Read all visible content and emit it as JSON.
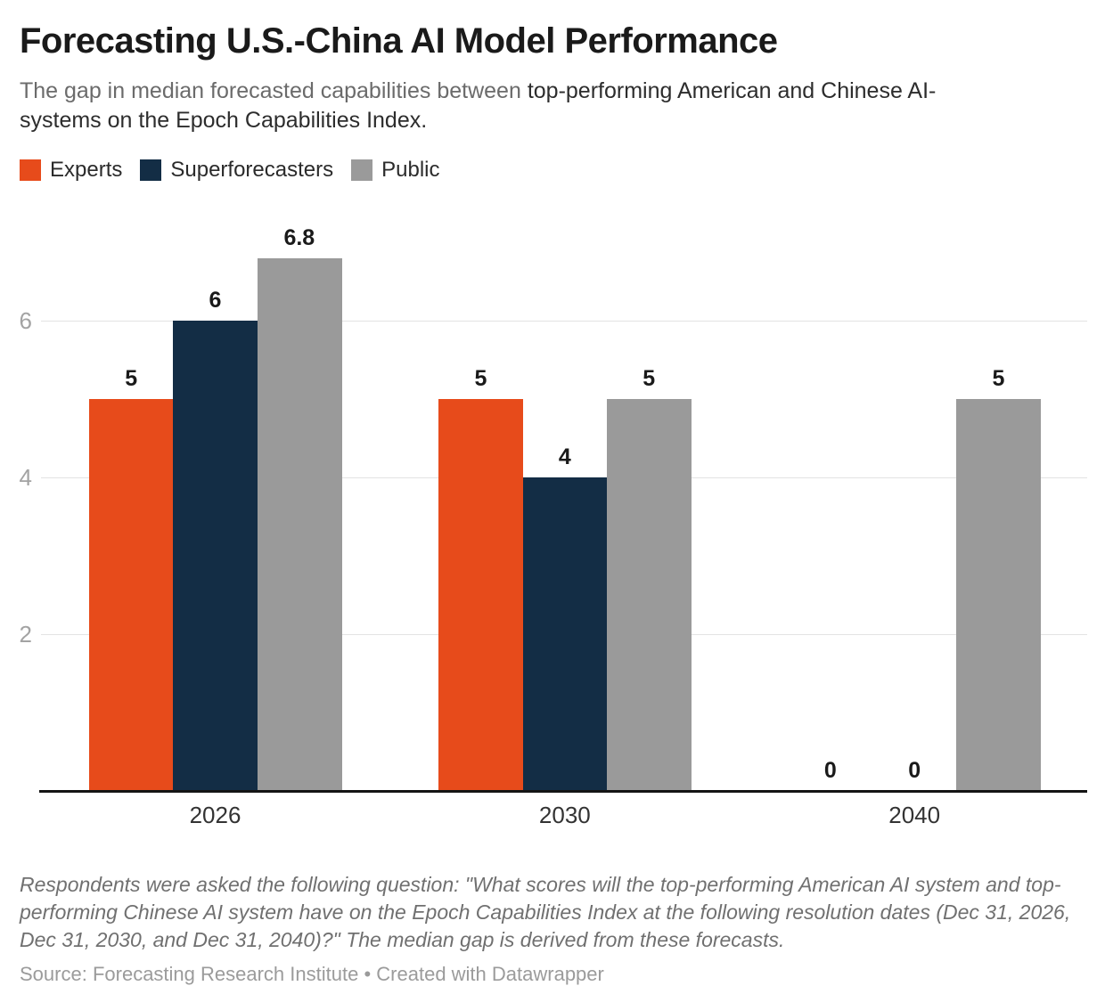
{
  "header": {
    "subtitle_plain": "The gap in median forecasted capabilities between ",
    "subtitle_em_line1": "top-performing American and Chinese AI-",
    "subtitle_em_line2": "systems on the Epoch Capabilities Index."
  },
  "chart_data": {
    "type": "bar",
    "title": "Forecasting U.S.-China AI Model Performance",
    "subtitle": "The gap in median forecasted capabilities between top-performing American and Chinese AI-systems on the Epoch Capabilities Index.",
    "categories": [
      "2026",
      "2030",
      "2040"
    ],
    "series": [
      {
        "name": "Experts",
        "color": "#e74b1b",
        "values": [
          5,
          5,
          0
        ]
      },
      {
        "name": "Superforecasters",
        "color": "#132d45",
        "values": [
          6,
          4,
          0
        ]
      },
      {
        "name": "Public",
        "color": "#9a9a9a",
        "values": [
          6.8,
          5,
          5
        ]
      }
    ],
    "value_labels": [
      "5",
      "6",
      "6.8",
      "5",
      "4",
      "5",
      "0",
      "0",
      "5"
    ],
    "xlabel": "",
    "ylabel": "",
    "yticks": [
      2,
      4,
      6
    ],
    "ylim": [
      0,
      7.4
    ],
    "grid": "horizontal",
    "legend_position": "top",
    "colors": {
      "experts": "#e74b1b",
      "superforecasters": "#132d45",
      "public": "#9a9a9a"
    }
  },
  "footer": {
    "footnote_lines": [
      "Respondents were asked the following question: \"What scores will the top-performing American AI system and top-",
      "performing Chinese AI system have on the Epoch Capabilities Index at the following resolution dates (Dec 31, 2026,",
      "Dec 31, 2030, and Dec 31, 2040)?\" The median gap is derived from these forecasts."
    ],
    "source_label": "Source:",
    "source_name": "Forecasting Research Institute",
    "separator": "•",
    "credit": "Created with Datawrapper"
  }
}
